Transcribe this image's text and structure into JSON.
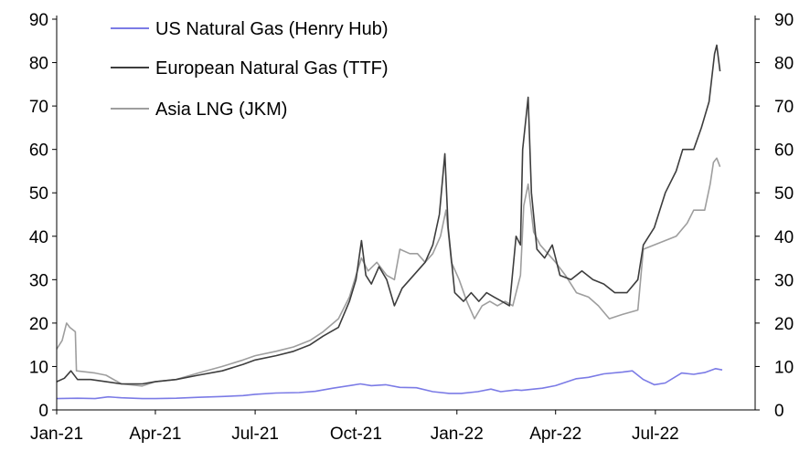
{
  "chart_data": {
    "type": "line",
    "title": "",
    "xlabel": "",
    "ylabel": "",
    "ylim": [
      0,
      90
    ],
    "y_ticks": [
      "0",
      "10",
      "20",
      "30",
      "40",
      "50",
      "60",
      "70",
      "80",
      "90"
    ],
    "x_ticks": [
      "Jan-21",
      "Apr-21",
      "Jul-21",
      "Oct-21",
      "Jan-22",
      "Apr-22",
      "Jul-22"
    ],
    "x_tick_dates": [
      "2021-01-01",
      "2021-04-01",
      "2021-07-01",
      "2021-10-01",
      "2022-01-01",
      "2022-04-01",
      "2022-07-01"
    ],
    "x_range": [
      "2021-01-01",
      "2022-09-30"
    ],
    "dual_axis": true,
    "grid": false,
    "legend": "top-left",
    "series": [
      {
        "name": "US Natural Gas (Henry Hub)",
        "color": "#7b7be6",
        "points": [
          [
            "2021-01-01",
            2.6
          ],
          [
            "2021-01-20",
            2.7
          ],
          [
            "2021-02-05",
            2.6
          ],
          [
            "2021-02-17",
            3.0
          ],
          [
            "2021-03-01",
            2.8
          ],
          [
            "2021-03-20",
            2.6
          ],
          [
            "2021-04-01",
            2.6
          ],
          [
            "2021-04-20",
            2.7
          ],
          [
            "2021-05-10",
            2.9
          ],
          [
            "2021-06-01",
            3.1
          ],
          [
            "2021-06-20",
            3.3
          ],
          [
            "2021-07-01",
            3.6
          ],
          [
            "2021-07-20",
            3.9
          ],
          [
            "2021-08-10",
            4.0
          ],
          [
            "2021-08-25",
            4.3
          ],
          [
            "2021-09-10",
            5.0
          ],
          [
            "2021-09-25",
            5.6
          ],
          [
            "2021-10-05",
            6.0
          ],
          [
            "2021-10-15",
            5.6
          ],
          [
            "2021-10-28",
            5.8
          ],
          [
            "2021-11-10",
            5.2
          ],
          [
            "2021-11-25",
            5.1
          ],
          [
            "2021-12-10",
            4.2
          ],
          [
            "2021-12-25",
            3.8
          ],
          [
            "2022-01-05",
            3.8
          ],
          [
            "2022-01-20",
            4.2
          ],
          [
            "2022-02-01",
            4.8
          ],
          [
            "2022-02-10",
            4.2
          ],
          [
            "2022-02-24",
            4.6
          ],
          [
            "2022-03-01",
            4.5
          ],
          [
            "2022-03-20",
            5.0
          ],
          [
            "2022-04-01",
            5.6
          ],
          [
            "2022-04-20",
            7.2
          ],
          [
            "2022-05-01",
            7.5
          ],
          [
            "2022-05-15",
            8.3
          ],
          [
            "2022-06-01",
            8.7
          ],
          [
            "2022-06-10",
            9.0
          ],
          [
            "2022-06-20",
            7.0
          ],
          [
            "2022-06-30",
            5.8
          ],
          [
            "2022-07-10",
            6.2
          ],
          [
            "2022-07-25",
            8.5
          ],
          [
            "2022-08-05",
            8.2
          ],
          [
            "2022-08-15",
            8.6
          ],
          [
            "2022-08-25",
            9.5
          ],
          [
            "2022-08-31",
            9.2
          ]
        ]
      },
      {
        "name": "European Natural Gas (TTF)",
        "color": "#3d3d3d",
        "points": [
          [
            "2021-01-01",
            6.5
          ],
          [
            "2021-01-08",
            7.3
          ],
          [
            "2021-01-14",
            9.0
          ],
          [
            "2021-01-20",
            7.0
          ],
          [
            "2021-02-01",
            7.0
          ],
          [
            "2021-02-15",
            6.5
          ],
          [
            "2021-03-01",
            6.0
          ],
          [
            "2021-03-20",
            6.0
          ],
          [
            "2021-04-01",
            6.5
          ],
          [
            "2021-04-20",
            7.0
          ],
          [
            "2021-05-10",
            8.0
          ],
          [
            "2021-06-01",
            9.0
          ],
          [
            "2021-06-20",
            10.5
          ],
          [
            "2021-07-01",
            11.5
          ],
          [
            "2021-07-20",
            12.5
          ],
          [
            "2021-08-05",
            13.5
          ],
          [
            "2021-08-20",
            15.0
          ],
          [
            "2021-09-01",
            17.0
          ],
          [
            "2021-09-15",
            19.0
          ],
          [
            "2021-09-25",
            25.0
          ],
          [
            "2021-10-01",
            30.0
          ],
          [
            "2021-10-06",
            39.0
          ],
          [
            "2021-10-10",
            31.0
          ],
          [
            "2021-10-15",
            29.0
          ],
          [
            "2021-10-22",
            33.0
          ],
          [
            "2021-10-29",
            30.0
          ],
          [
            "2021-11-05",
            24.0
          ],
          [
            "2021-11-12",
            28.0
          ],
          [
            "2021-11-19",
            30.0
          ],
          [
            "2021-11-26",
            32.0
          ],
          [
            "2021-12-03",
            34.0
          ],
          [
            "2021-12-10",
            38.0
          ],
          [
            "2021-12-16",
            45.0
          ],
          [
            "2021-12-21",
            59.0
          ],
          [
            "2021-12-24",
            42.0
          ],
          [
            "2021-12-30",
            27.0
          ],
          [
            "2022-01-07",
            25.0
          ],
          [
            "2022-01-14",
            27.0
          ],
          [
            "2022-01-21",
            25.0
          ],
          [
            "2022-01-28",
            27.0
          ],
          [
            "2022-02-04",
            26.0
          ],
          [
            "2022-02-11",
            25.0
          ],
          [
            "2022-02-18",
            24.0
          ],
          [
            "2022-02-24",
            40.0
          ],
          [
            "2022-02-28",
            38.0
          ],
          [
            "2022-03-02",
            60.0
          ],
          [
            "2022-03-07",
            72.0
          ],
          [
            "2022-03-10",
            50.0
          ],
          [
            "2022-03-15",
            37.0
          ],
          [
            "2022-03-22",
            35.0
          ],
          [
            "2022-03-29",
            38.0
          ],
          [
            "2022-04-05",
            31.0
          ],
          [
            "2022-04-15",
            30.0
          ],
          [
            "2022-04-25",
            32.0
          ],
          [
            "2022-05-05",
            30.0
          ],
          [
            "2022-05-15",
            29.0
          ],
          [
            "2022-05-25",
            27.0
          ],
          [
            "2022-06-05",
            27.0
          ],
          [
            "2022-06-15",
            30.0
          ],
          [
            "2022-06-20",
            38.0
          ],
          [
            "2022-06-30",
            42.0
          ],
          [
            "2022-07-10",
            50.0
          ],
          [
            "2022-07-20",
            55.0
          ],
          [
            "2022-07-26",
            60.0
          ],
          [
            "2022-08-05",
            60.0
          ],
          [
            "2022-08-12",
            65.0
          ],
          [
            "2022-08-19",
            71.0
          ],
          [
            "2022-08-24",
            82.0
          ],
          [
            "2022-08-26",
            84.0
          ],
          [
            "2022-08-29",
            78.0
          ]
        ]
      },
      {
        "name": "Asia LNG (JKM)",
        "color": "#9e9e9e",
        "points": [
          [
            "2021-01-01",
            14.0
          ],
          [
            "2021-01-06",
            16.0
          ],
          [
            "2021-01-10",
            20.0
          ],
          [
            "2021-01-13",
            19.0
          ],
          [
            "2021-01-18",
            18.0
          ],
          [
            "2021-01-19",
            9.0
          ],
          [
            "2021-02-05",
            8.5
          ],
          [
            "2021-02-15",
            8.0
          ],
          [
            "2021-03-01",
            6.0
          ],
          [
            "2021-03-20",
            5.5
          ],
          [
            "2021-04-01",
            6.5
          ],
          [
            "2021-04-20",
            7.0
          ],
          [
            "2021-05-10",
            8.5
          ],
          [
            "2021-06-01",
            10.0
          ],
          [
            "2021-06-20",
            11.5
          ],
          [
            "2021-07-01",
            12.5
          ],
          [
            "2021-07-20",
            13.5
          ],
          [
            "2021-08-05",
            14.5
          ],
          [
            "2021-08-20",
            16.0
          ],
          [
            "2021-09-01",
            18.0
          ],
          [
            "2021-09-15",
            21.0
          ],
          [
            "2021-09-25",
            26.0
          ],
          [
            "2021-10-01",
            31.0
          ],
          [
            "2021-10-06",
            35.0
          ],
          [
            "2021-10-12",
            32.0
          ],
          [
            "2021-10-20",
            34.0
          ],
          [
            "2021-10-29",
            31.0
          ],
          [
            "2021-11-05",
            30.0
          ],
          [
            "2021-11-10",
            37.0
          ],
          [
            "2021-11-19",
            36.0
          ],
          [
            "2021-11-26",
            36.0
          ],
          [
            "2021-12-03",
            34.0
          ],
          [
            "2021-12-10",
            36.0
          ],
          [
            "2021-12-17",
            40.0
          ],
          [
            "2021-12-22",
            46.0
          ],
          [
            "2021-12-27",
            34.0
          ],
          [
            "2022-01-03",
            30.0
          ],
          [
            "2022-01-10",
            25.0
          ],
          [
            "2022-01-17",
            21.0
          ],
          [
            "2022-01-24",
            24.0
          ],
          [
            "2022-01-31",
            25.0
          ],
          [
            "2022-02-07",
            24.0
          ],
          [
            "2022-02-14",
            25.0
          ],
          [
            "2022-02-21",
            24.0
          ],
          [
            "2022-02-28",
            31.0
          ],
          [
            "2022-03-03",
            47.0
          ],
          [
            "2022-03-07",
            52.0
          ],
          [
            "2022-03-12",
            41.0
          ],
          [
            "2022-03-18",
            38.0
          ],
          [
            "2022-03-25",
            36.0
          ],
          [
            "2022-04-01",
            34.0
          ],
          [
            "2022-04-10",
            31.0
          ],
          [
            "2022-04-20",
            27.0
          ],
          [
            "2022-05-01",
            26.0
          ],
          [
            "2022-05-10",
            24.0
          ],
          [
            "2022-05-20",
            21.0
          ],
          [
            "2022-06-01",
            22.0
          ],
          [
            "2022-06-15",
            23.0
          ],
          [
            "2022-06-20",
            37.0
          ],
          [
            "2022-06-30",
            38.0
          ],
          [
            "2022-07-10",
            39.0
          ],
          [
            "2022-07-20",
            40.0
          ],
          [
            "2022-07-30",
            43.0
          ],
          [
            "2022-08-05",
            46.0
          ],
          [
            "2022-08-15",
            46.0
          ],
          [
            "2022-08-20",
            52.0
          ],
          [
            "2022-08-23",
            57.0
          ],
          [
            "2022-08-26",
            58.0
          ],
          [
            "2022-08-29",
            56.0
          ]
        ]
      }
    ]
  }
}
